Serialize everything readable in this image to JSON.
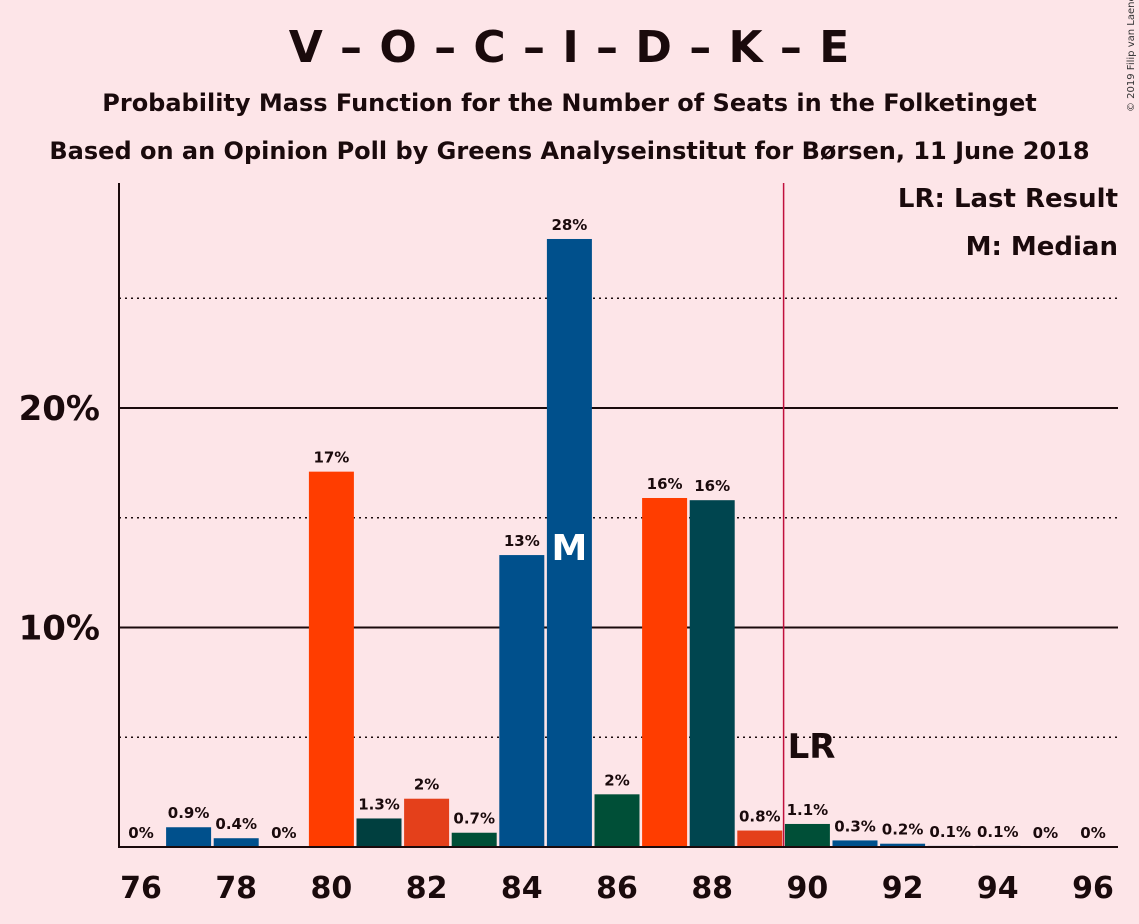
{
  "header": {
    "title": "V – O – C – I – D – K – E",
    "subtitle": "Probability Mass Function for the Number of Seats in the Folketinget",
    "subtitle2": "Based on an Opinion Poll by Greens Analyseinstitut for Børsen, 11 June 2018",
    "copyright": "© 2019 Filip van Laenen"
  },
  "legend": {
    "last_result": "LR: Last Result",
    "median": "M: Median"
  },
  "chart_data": {
    "type": "bar",
    "categories": [
      76,
      77,
      78,
      79,
      80,
      81,
      82,
      83,
      84,
      85,
      86,
      87,
      88,
      89,
      90,
      91,
      92,
      93,
      94,
      95,
      96
    ],
    "values": [
      0,
      0.9,
      0.4,
      0,
      17,
      1.3,
      2,
      0.7,
      13,
      28,
      2,
      16,
      16,
      0.8,
      1.1,
      0.3,
      0.2,
      0.1,
      0.1,
      0,
      0
    ],
    "plot_values": [
      0,
      0.9,
      0.4,
      0,
      17.1,
      1.3,
      2.2,
      0.65,
      13.3,
      27.7,
      2.4,
      15.9,
      15.8,
      0.75,
      1.05,
      0.3,
      0.15,
      0.05,
      0.05,
      0,
      0
    ],
    "labels": [
      "0%",
      "0.9%",
      "0.4%",
      "0%",
      "17%",
      "1.3%",
      "2%",
      "0.7%",
      "13%",
      "28%",
      "2%",
      "16%",
      "16%",
      "0.8%",
      "1.1%",
      "0.3%",
      "0.2%",
      "0.1%",
      "0.1%",
      "0%",
      "0%"
    ],
    "colors": [
      "#00508C",
      "#00508C",
      "#00508C",
      "#00508C",
      "#FF3D00",
      "#003F3F",
      "#E4401B",
      "#004F37",
      "#00508C",
      "#00508C",
      "#004F37",
      "#FF3D00",
      "#00454F",
      "#E4401B",
      "#004F37",
      "#00508C",
      "#00508C",
      "#00508C",
      "#00508C",
      "#00508C",
      "#00508C"
    ],
    "x_ticks": [
      76,
      78,
      80,
      82,
      84,
      86,
      88,
      90,
      92,
      94,
      96
    ],
    "y_ticks_labeled": [
      {
        "value": 10,
        "label": "10%"
      },
      {
        "value": 20,
        "label": "20%"
      }
    ],
    "y_gridlines_dotted": [
      5,
      15,
      25
    ],
    "ylim": [
      0,
      30
    ],
    "median": 85,
    "median_label": "M",
    "last_result": 90,
    "last_result_label": "LR",
    "last_result_color": "#C0103C",
    "title": "V – O – C – I – D – K – E",
    "xlabel": "",
    "ylabel": ""
  }
}
